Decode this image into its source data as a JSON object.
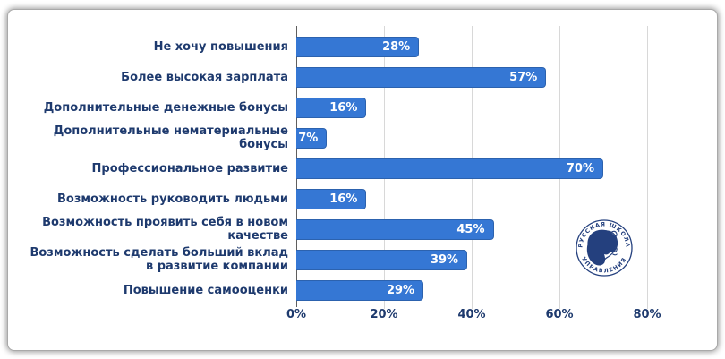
{
  "chart_data": {
    "type": "bar",
    "orientation": "horizontal",
    "title": "",
    "xlabel": "",
    "ylabel": "",
    "categories": [
      "Не хочу повышения",
      "Более высокая зарплата",
      "Дополнительные денежные бонусы",
      "Дополнительные нематериальные\nбонусы",
      "Профессиональное развитие",
      "Возможность руководить людьми",
      "Возможность проявить себя в новом\nкачестве",
      "Возможность сделать больший вклад\nв развитие компании",
      "Повышение самооценки"
    ],
    "values": [
      28,
      57,
      16,
      7,
      70,
      16,
      45,
      39,
      29
    ],
    "labels": [
      "28%",
      "57%",
      "16%",
      "7%",
      "70%",
      "16%",
      "45%",
      "39%",
      "29%"
    ],
    "x_ticks": [
      "0%",
      "20%",
      "40%",
      "60%",
      "80%"
    ],
    "x_tick_values": [
      0,
      20,
      40,
      60,
      80
    ],
    "xlim": [
      0,
      95
    ],
    "grid": "vertical-only",
    "legend": "none",
    "bar_color": "#3577d4",
    "bar_border_color": "#2c62ae",
    "text_color": "#1e3a6e",
    "grid_color": "#d8d8d8",
    "axis_color": "#5f5f5f"
  },
  "logo": {
    "text_top": "• РУССКАЯ ШКОЛА •",
    "text_bottom": "УПРАВЛЕНИЯ",
    "color": "#24407e"
  }
}
